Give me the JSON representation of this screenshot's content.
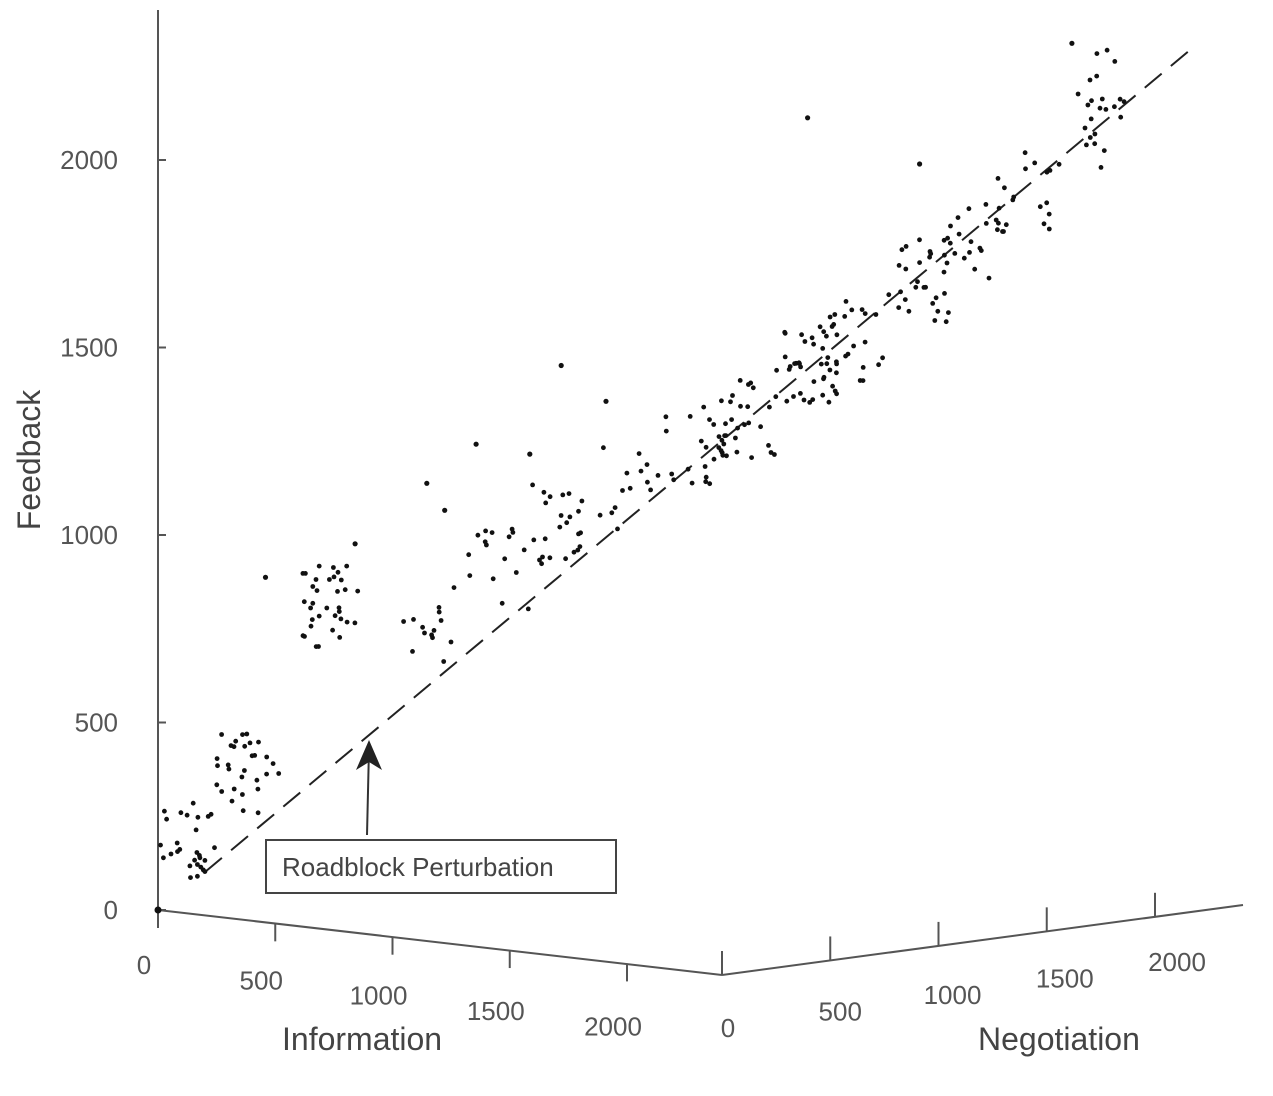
{
  "chart_data": {
    "type": "scatter",
    "projection": "3d",
    "title": "",
    "axes": {
      "x": {
        "label": "Information",
        "ticks": [
          "0",
          "500",
          "1000",
          "1500",
          "2000"
        ]
      },
      "y": {
        "label": "Negotiation",
        "ticks": [
          "0",
          "500",
          "1000",
          "1500",
          "2000"
        ]
      },
      "z": {
        "label": "Feedback",
        "ticks": [
          "0",
          "500",
          "1000",
          "1500",
          "2000"
        ]
      }
    },
    "zlim": [
      0,
      2400
    ],
    "annotation": {
      "text": "Roadblock Perturbation"
    },
    "guide_line": {
      "style": "dashed",
      "from_feedback": 100,
      "to_feedback": 2330
    },
    "clusters": [
      {
        "x": 60,
        "feedback": 180,
        "count": 28
      },
      {
        "x": 200,
        "feedback": 380,
        "count": 30
      },
      {
        "x": 380,
        "feedback": 830,
        "count": 34
      },
      {
        "x": 600,
        "feedback": 800,
        "count": 14
      },
      {
        "x": 760,
        "feedback": 950,
        "count": 16
      },
      {
        "x": 900,
        "feedback": 1070,
        "count": 24
      },
      {
        "x": 1050,
        "feedback": 1180,
        "count": 14
      },
      {
        "x": 1200,
        "feedback": 1300,
        "count": 22
      },
      {
        "x": 1320,
        "feedback": 1380,
        "count": 28
      },
      {
        "x": 1450,
        "feedback": 1540,
        "count": 40
      },
      {
        "x": 1560,
        "feedback": 1600,
        "count": 20
      },
      {
        "x": 1700,
        "feedback": 1770,
        "count": 30
      },
      {
        "x": 1820,
        "feedback": 1880,
        "count": 20
      },
      {
        "x": 1930,
        "feedback": 2020,
        "count": 16
      },
      {
        "x": 2050,
        "feedback": 2200,
        "count": 14
      },
      {
        "x": 2150,
        "feedback": 2330,
        "count": 10
      }
    ],
    "outliers": [
      {
        "x": 240,
        "feedback": 900
      },
      {
        "x": 440,
        "feedback": 1000
      },
      {
        "x": 600,
        "feedback": 1170
      },
      {
        "x": 640,
        "feedback": 1100
      },
      {
        "x": 710,
        "feedback": 1280
      },
      {
        "x": 830,
        "feedback": 1260
      },
      {
        "x": 900,
        "feedback": 1500
      },
      {
        "x": 1000,
        "feedback": 1410
      },
      {
        "x": 1450,
        "feedback": 2190
      },
      {
        "x": 1700,
        "feedback": 2080
      },
      {
        "x": 2040,
        "feedback": 2420
      }
    ]
  }
}
